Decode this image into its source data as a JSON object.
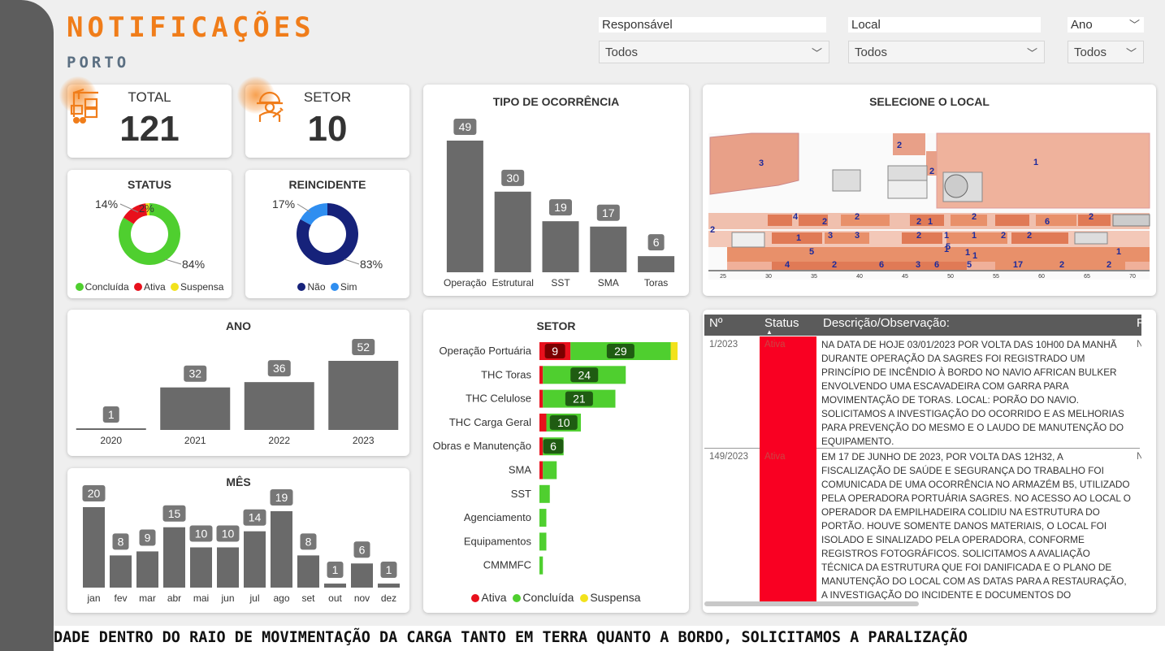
{
  "header": {
    "title": "NOTIFICAÇÕES",
    "subtitle": "PORTO"
  },
  "filters": [
    {
      "label": "Responsável",
      "value": "Todos"
    },
    {
      "label": "Local",
      "value": "Todos"
    },
    {
      "label": "Ano",
      "value": "Todos"
    }
  ],
  "kpis": {
    "total": {
      "label": "TOTAL",
      "value": "121",
      "icon": "cargo-crane-icon"
    },
    "setor": {
      "label": "SETOR",
      "value": "10",
      "icon": "worker-icon"
    }
  },
  "status_chart": {
    "title": "STATUS",
    "legend": [
      "Concluída",
      "Ativa",
      "Suspensa"
    ],
    "labels": [
      "14%",
      "2%",
      "84%"
    ]
  },
  "reincidente_chart": {
    "title": "REINCIDENTE",
    "legend": [
      "Não",
      "Sim"
    ],
    "labels": [
      "17%",
      "83%"
    ]
  },
  "tipo_title": "TIPO DE OCORRÊNCIA",
  "ano_title": "ANO",
  "mes_title": "MÊS",
  "setor_title": "SETOR",
  "setor_legend": [
    "Ativa",
    "Concluída",
    "Suspensa"
  ],
  "map": {
    "title": "SELECIONE O LOCAL",
    "numbers": [
      "3",
      "2",
      "2",
      "1",
      "4",
      "2",
      "2",
      "1",
      "2",
      "6",
      "2",
      "2",
      "3",
      "3",
      "1",
      "2",
      "1",
      "1",
      "2",
      "2",
      "5",
      "5",
      "1",
      "3",
      "1",
      "2",
      "1",
      "4",
      "2",
      "6",
      "6",
      "5",
      "17",
      "2",
      "2",
      "1"
    ],
    "axis": [
      "25",
      "30",
      "35",
      "40",
      "45",
      "50",
      "55",
      "60",
      "65",
      "70"
    ]
  },
  "table": {
    "headers": [
      "Nº",
      "Status",
      "Descrição/Observação:",
      "R"
    ],
    "rows": [
      {
        "num": "1/2023",
        "status": "Ativa",
        "r": "N",
        "desc": "NA DATA DE HOJE 03/01/2023 POR VOLTA DAS 10H00 DA MANHÃ DURANTE OPERAÇÃO DA SAGRES FOI REGISTRADO UM PRINCÍPIO DE INCÊNDIO À BORDO NO NAVIO AFRICAN BULKER ENVOLVENDO UMA ESCAVADEIRA COM GARRA PARA MOVIMENTAÇÃO DE TORAS. LOCAL: PORÃO DO NAVIO. SOLICITAMOS A INVESTIGAÇÃO DO OCORRIDO E AS MELHORIAS PARA PREVENÇÃO DO MESMO E O LAUDO DE MANUTENÇÃO DO EQUIPAMENTO."
      },
      {
        "num": "149/2023",
        "status": "Ativa",
        "r": "N",
        "desc": "EM 17 DE JUNHO DE 2023, POR VOLTA DAS 12H32, A FISCALIZAÇÃO DE SAÚDE E SEGURANÇA DO TRABALHO FOI COMUNICADA DE UMA OCORRÊNCIA NO ARMAZÉM B5, UTILIZADO PELA OPERADORA PORTUÁRIA SAGRES. NO ACESSO AO LOCAL O OPERADOR DA EMPILHADEIRA COLIDIU NA ESTRUTURA DO PORTÃO. HOUVE SOMENTE DANOS MATERIAIS, O LOCAL FOI ISOLADO E SINALIZADO PELA OPERADORA, CONFORME REGISTROS FOTOGRÁFICOS. SOLICITAMOS A AVALIAÇÃO TÉCNICA DA ESTRUTURA QUE FOI DANIFICADA E O PLANO DE MANUTENÇÃO DO LOCAL COM AS DATAS PARA A RESTAURAÇÃO, A INVESTIGAÇÃO DO INCIDENTE E DOCUMENTOS DO COLABORADOR (FICHA REGISTRO, CERTIFICADOS"
      }
    ]
  },
  "ticker": "DADE DENTRO DO RAIO DE MOVIMENTAÇÃO DA CARGA TANTO EM TERRA QUANTO A BORDO, SOLICITAMOS A PARALIZAÇÃO",
  "colors": {
    "accent": "#f07d1a",
    "bar": "#6a6a6a",
    "concluida": "#4fcf2f",
    "ativa": "#e8101c",
    "suspensa": "#f2e21c",
    "nao": "#16227a",
    "sim": "#2f8ef0"
  },
  "chart_data": [
    {
      "type": "bar",
      "title": "TIPO DE OCORRÊNCIA",
      "categories": [
        "Operação",
        "Estrutural",
        "SST",
        "SMA",
        "Toras"
      ],
      "values": [
        49,
        30,
        19,
        17,
        6
      ]
    },
    {
      "type": "bar",
      "title": "ANO",
      "categories": [
        "2020",
        "2021",
        "2022",
        "2023"
      ],
      "values": [
        1,
        32,
        36,
        52
      ]
    },
    {
      "type": "bar",
      "title": "MÊS",
      "categories": [
        "jan",
        "fev",
        "mar",
        "abr",
        "mai",
        "jun",
        "jul",
        "ago",
        "set",
        "out",
        "nov",
        "dez"
      ],
      "values": [
        20,
        8,
        9,
        15,
        10,
        10,
        14,
        19,
        8,
        1,
        6,
        1
      ]
    },
    {
      "type": "bar",
      "orientation": "horizontal",
      "stacked": true,
      "title": "SETOR",
      "categories": [
        "Operação Portuária",
        "THC Toras",
        "THC Celulose",
        "THC Carga Geral",
        "Obras e Manutenção",
        "SMA",
        "SST",
        "Agenciamento",
        "Equipamentos",
        "CMMMFC"
      ],
      "series": [
        {
          "name": "Ativa",
          "values": [
            9,
            1,
            1,
            2,
            1,
            1,
            0,
            0,
            0,
            0
          ]
        },
        {
          "name": "Concluída",
          "values": [
            29,
            24,
            21,
            10,
            6,
            4,
            3,
            2,
            2,
            1
          ]
        },
        {
          "name": "Suspensa",
          "values": [
            2,
            0,
            0,
            0,
            0,
            0,
            0,
            0,
            0,
            0
          ]
        }
      ]
    },
    {
      "type": "pie",
      "title": "STATUS",
      "categories": [
        "Concluída",
        "Ativa",
        "Suspensa"
      ],
      "values": [
        84,
        14,
        2
      ]
    },
    {
      "type": "pie",
      "title": "REINCIDENTE",
      "categories": [
        "Não",
        "Sim"
      ],
      "values": [
        83,
        17
      ]
    }
  ]
}
